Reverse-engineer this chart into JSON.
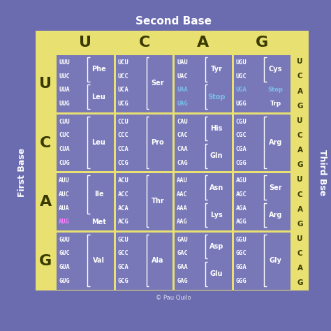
{
  "title": "Second Base",
  "first_base_label": "First Base",
  "third_base_label": "Third Bse",
  "second_bases": [
    "U",
    "C",
    "A",
    "G"
  ],
  "first_bases": [
    "U",
    "C",
    "A",
    "G"
  ],
  "third_bases": "UCAG",
  "bg_color": "#6B6BB0",
  "header_bg": "#E8E070",
  "cell_bg": "#7878B8",
  "cells": [
    [
      {
        "codons": [
          "UUU",
          "UUC"
        ],
        "amino": "Phe",
        "codons2": [
          "UUA",
          "UUG"
        ],
        "amino2": "Leu",
        "stop_codons": [],
        "met_codons": []
      },
      {
        "codons": [
          "UCU",
          "UCC",
          "UCA",
          "UCG"
        ],
        "amino": "Ser",
        "codons2": [],
        "amino2": "",
        "stop_codons": [],
        "met_codons": []
      },
      {
        "codons": [
          "UAU",
          "UAC"
        ],
        "amino": "Tyr",
        "codons2": [
          "UAA",
          "UAG"
        ],
        "amino2": "Stop",
        "stop_codons": [
          "UAA",
          "UAG"
        ],
        "met_codons": []
      },
      {
        "codons": [
          "UGU",
          "UGC"
        ],
        "amino": "Cys",
        "codons2": [
          "UGA",
          "UGG"
        ],
        "amino2": "Stop_Trp",
        "stop_codons": [
          "UGA"
        ],
        "met_codons": []
      }
    ],
    [
      {
        "codons": [
          "CUU",
          "CUC",
          "CUA",
          "CUG"
        ],
        "amino": "Leu",
        "codons2": [],
        "amino2": "",
        "stop_codons": [],
        "met_codons": []
      },
      {
        "codons": [
          "CCU",
          "CCC",
          "CCA",
          "CCG"
        ],
        "amino": "Pro",
        "codons2": [],
        "amino2": "",
        "stop_codons": [],
        "met_codons": []
      },
      {
        "codons": [
          "CAU",
          "CAC"
        ],
        "amino": "His",
        "codons2": [
          "CAA",
          "CAG"
        ],
        "amino2": "Gln",
        "stop_codons": [],
        "met_codons": []
      },
      {
        "codons": [
          "CGU",
          "CGC",
          "CGA",
          "CGG"
        ],
        "amino": "Arg",
        "codons2": [],
        "amino2": "",
        "stop_codons": [],
        "met_codons": []
      }
    ],
    [
      {
        "codons": [
          "AUU",
          "AUC",
          "AUA"
        ],
        "amino": "Ile",
        "codons2": [
          "AUG"
        ],
        "amino2": "Met",
        "stop_codons": [],
        "met_codons": [
          "AUG"
        ]
      },
      {
        "codons": [
          "ACU",
          "ACC",
          "ACA",
          "ACG"
        ],
        "amino": "Thr",
        "codons2": [],
        "amino2": "",
        "stop_codons": [],
        "met_codons": []
      },
      {
        "codons": [
          "AAU",
          "AAC"
        ],
        "amino": "Asn",
        "codons2": [
          "AAA",
          "AAG"
        ],
        "amino2": "Lys",
        "stop_codons": [],
        "met_codons": []
      },
      {
        "codons": [
          "AGU",
          "AGC"
        ],
        "amino": "Ser",
        "codons2": [
          "AGA",
          "AGG"
        ],
        "amino2": "Arg",
        "stop_codons": [],
        "met_codons": []
      }
    ],
    [
      {
        "codons": [
          "GUU",
          "GUC",
          "GUA",
          "GUG"
        ],
        "amino": "Val",
        "codons2": [],
        "amino2": "",
        "stop_codons": [],
        "met_codons": []
      },
      {
        "codons": [
          "GCU",
          "GCC",
          "GCA",
          "GCG"
        ],
        "amino": "Ala",
        "codons2": [],
        "amino2": "",
        "stop_codons": [],
        "met_codons": []
      },
      {
        "codons": [
          "GAU",
          "GAC"
        ],
        "amino": "Asp",
        "codons2": [
          "GAA",
          "GAG"
        ],
        "amino2": "Glu",
        "stop_codons": [],
        "met_codons": []
      },
      {
        "codons": [
          "GGU",
          "GGC",
          "GGA",
          "GGG"
        ],
        "amino": "Gly",
        "codons2": [],
        "amino2": "",
        "stop_codons": [],
        "met_codons": []
      }
    ]
  ],
  "stop_color": "#7BBFEA",
  "met_color": "#FF80FF",
  "codon_color": "#FFFFFF",
  "amino_color": "#FFFFFF",
  "header_color": "#3A3A00",
  "watermark": "© Pau Quilo"
}
